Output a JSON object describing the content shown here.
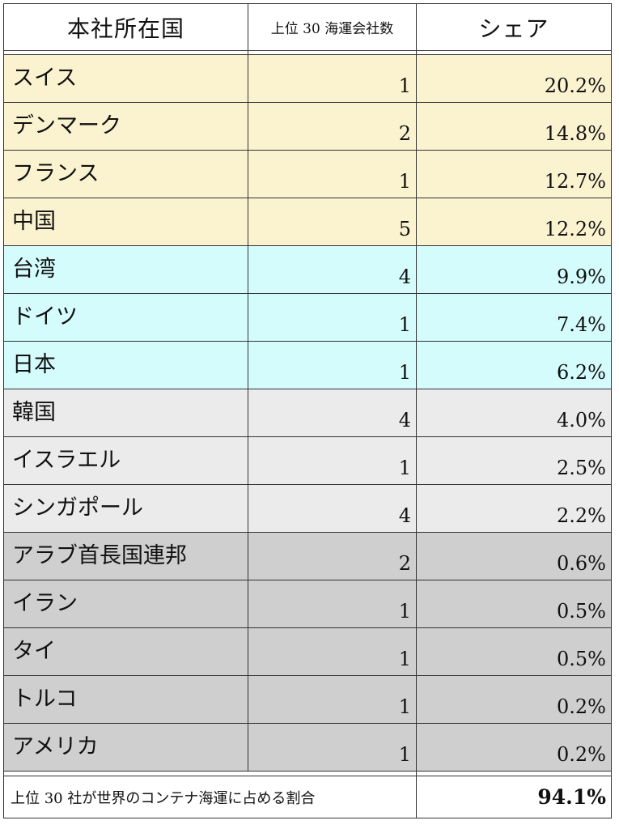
{
  "header": {
    "country": "本社所在国",
    "count": "上位 30 海運会社数",
    "share": "シェア"
  },
  "rows": [
    {
      "country": "スイス",
      "count": "1",
      "share": "20.2%",
      "group": "yellow"
    },
    {
      "country": "デンマーク",
      "count": "2",
      "share": "14.8%",
      "group": "yellow"
    },
    {
      "country": "フランス",
      "count": "1",
      "share": "12.7%",
      "group": "yellow"
    },
    {
      "country": "中国",
      "count": "5",
      "share": "12.2%",
      "group": "yellow"
    },
    {
      "country": "台湾",
      "count": "4",
      "share": "9.9%",
      "group": "cyan"
    },
    {
      "country": "ドイツ",
      "count": "1",
      "share": "7.4%",
      "group": "cyan"
    },
    {
      "country": "日本",
      "count": "1",
      "share": "6.2%",
      "group": "cyan"
    },
    {
      "country": "韓国",
      "count": "4",
      "share": "4.0%",
      "group": "lightgray"
    },
    {
      "country": "イスラエル",
      "count": "1",
      "share": "2.5%",
      "group": "lightgray"
    },
    {
      "country": "シンガポール",
      "count": "4",
      "share": "2.2%",
      "group": "lightgray"
    },
    {
      "country": "アラブ首長国連邦",
      "count": "2",
      "share": "0.6%",
      "group": "gray"
    },
    {
      "country": "イラン",
      "count": "1",
      "share": "0.5%",
      "group": "gray"
    },
    {
      "country": "タイ",
      "count": "1",
      "share": "0.5%",
      "group": "gray"
    },
    {
      "country": "トルコ",
      "count": "1",
      "share": "0.2%",
      "group": "gray"
    },
    {
      "country": "アメリカ",
      "count": "1",
      "share": "0.2%",
      "group": "gray"
    }
  ],
  "group_colors": {
    "yellow": "#fbf3d0",
    "cyan": "#d5fcfc",
    "lightgray": "#ebebeb",
    "gray": "#cfcfcf"
  },
  "total": {
    "label": "上位 30 社が世界のコンテナ海運に占める割合",
    "value": "94.1%"
  }
}
